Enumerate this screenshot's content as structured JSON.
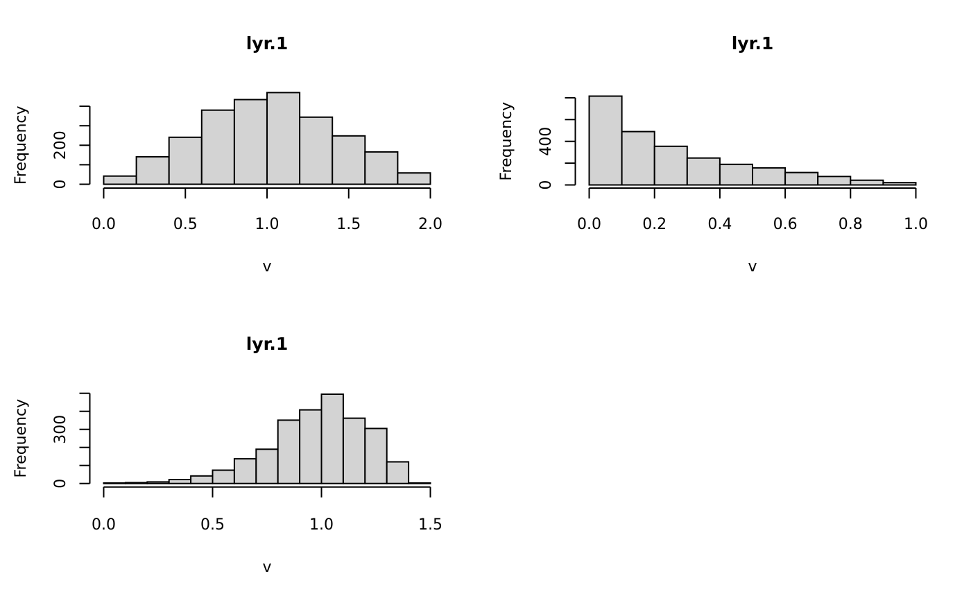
{
  "figure": {
    "background": "#ffffff",
    "bar_fill": "#d3d3d3",
    "bar_stroke": "#000000",
    "axis_color": "#000000"
  },
  "chart_data": [
    {
      "type": "bar",
      "subtype": "histogram",
      "title": "lyr.1",
      "xlabel": "v",
      "ylabel": "Frequency",
      "bin_start": 0.0,
      "bin_width": 0.2,
      "counts": [
        42,
        141,
        241,
        380,
        434,
        470,
        344,
        248,
        166,
        58
      ],
      "xlim": [
        0.0,
        2.0
      ],
      "ylim": [
        0,
        470
      ],
      "x_tick_values": [
        0.0,
        0.5,
        1.0,
        1.5,
        2.0
      ],
      "x_tick_labels": [
        "0.0",
        "0.5",
        "1.0",
        "1.5",
        "2.0"
      ],
      "y_tick_values": [
        0,
        100,
        200,
        300,
        400
      ],
      "y_tick_labels": [
        "0",
        "",
        "200",
        "",
        ""
      ],
      "grid": "off",
      "legend": "none"
    },
    {
      "type": "bar",
      "subtype": "histogram",
      "title": "lyr.1",
      "xlabel": "v",
      "ylabel": "Frequency",
      "bin_start": 0.0,
      "bin_width": 0.1,
      "counts": [
        815,
        490,
        355,
        247,
        189,
        157,
        114,
        78,
        43,
        21
      ],
      "xlim": [
        0.0,
        1.0
      ],
      "ylim": [
        0,
        815
      ],
      "x_tick_values": [
        0.0,
        0.2,
        0.4,
        0.6,
        0.8,
        1.0
      ],
      "x_tick_labels": [
        "0.0",
        "0.2",
        "0.4",
        "0.6",
        "0.8",
        "1.0"
      ],
      "y_tick_values": [
        0,
        200,
        400,
        600,
        800
      ],
      "y_tick_labels": [
        "0",
        "",
        "400",
        "",
        ""
      ],
      "grid": "off",
      "legend": "none"
    },
    {
      "type": "bar",
      "subtype": "histogram",
      "title": "lyr.1",
      "xlabel": "v",
      "ylabel": "Frequency",
      "bin_start": 0.0,
      "bin_width": 0.1,
      "counts": [
        3,
        5,
        9,
        22,
        42,
        74,
        137,
        190,
        351,
        408,
        495,
        362,
        305,
        120,
        3
      ],
      "xlim": [
        0.0,
        1.5
      ],
      "ylim": [
        0,
        495
      ],
      "x_tick_values": [
        0.0,
        0.5,
        1.0,
        1.5
      ],
      "x_tick_labels": [
        "0.0",
        "0.5",
        "1.0",
        "1.5"
      ],
      "y_tick_values": [
        0,
        100,
        200,
        300,
        400,
        500
      ],
      "y_tick_labels": [
        "0",
        "",
        "",
        "300",
        "",
        ""
      ],
      "grid": "off",
      "legend": "none"
    }
  ]
}
